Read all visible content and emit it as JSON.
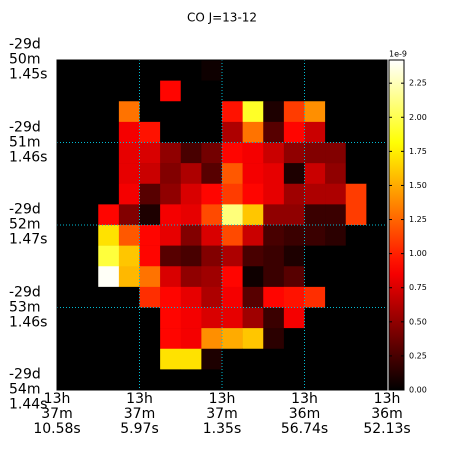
{
  "chart_data": {
    "type": "heatmap",
    "title": "CO J=13-12",
    "cmap": "hot",
    "grid": true,
    "grid_color": "#00bcd4",
    "xlim": [
      0,
      16
    ],
    "ylim": [
      16,
      0
    ],
    "xticks": [
      {
        "value": 0,
        "label": "13h\n37m\n10.58s"
      },
      {
        "value": 4,
        "label": "13h\n37m\n5.97s"
      },
      {
        "value": 8,
        "label": "13h\n37m\n1.35s"
      },
      {
        "value": 12,
        "label": "13h\n36m\n56.74s"
      },
      {
        "value": 16,
        "label": "13h\n36m\n52.13s"
      }
    ],
    "yticks": [
      {
        "value": 0,
        "label": "-29d\n50m\n1.45s"
      },
      {
        "value": 4,
        "label": "-29d\n51m\n1.46s"
      },
      {
        "value": 8,
        "label": "-29d\n52m\n1.47s"
      },
      {
        "value": 12,
        "label": "-29d\n53m\n1.46s"
      },
      {
        "value": 16,
        "label": "-29d\n54m\n1.44s"
      }
    ],
    "colorbar": {
      "lim": [
        0,
        2.42
      ],
      "offset_label": "1e-9",
      "ticks": [
        {
          "value": 0,
          "label": "0.00"
        },
        {
          "value": 0.25,
          "label": "0.25"
        },
        {
          "value": 0.5,
          "label": "0.50"
        },
        {
          "value": 0.75,
          "label": "0.75"
        },
        {
          "value": 1,
          "label": "1.00"
        },
        {
          "value": 1.25,
          "label": "1.25"
        },
        {
          "value": 1.5,
          "label": "1.50"
        },
        {
          "value": 1.75,
          "label": "1.75"
        },
        {
          "value": 2,
          "label": "2.00"
        },
        {
          "value": 2.25,
          "label": "2.25"
        }
      ]
    },
    "values": [
      [
        0,
        0,
        0,
        0,
        0,
        0,
        0,
        0.05,
        0,
        0,
        0,
        0,
        0,
        0,
        0,
        0
      ],
      [
        0,
        0,
        0,
        0,
        0,
        0.9,
        0,
        0,
        0,
        0,
        0,
        0,
        0,
        0,
        0,
        0
      ],
      [
        0,
        0,
        0,
        1.3,
        0,
        0,
        0,
        0,
        0.95,
        1.9,
        0.1,
        1.1,
        1.4,
        0,
        0,
        0
      ],
      [
        0,
        0,
        0,
        0.85,
        0.95,
        0,
        0,
        0,
        0.6,
        1.3,
        0.3,
        0.9,
        0.7,
        0,
        0,
        0
      ],
      [
        0,
        0,
        0,
        0.8,
        0.75,
        0.5,
        0.25,
        0.4,
        0.9,
        0.85,
        0.7,
        0.5,
        0.45,
        0.45,
        0,
        0
      ],
      [
        0,
        0,
        0,
        0.8,
        0.7,
        0.45,
        0.6,
        0.3,
        1.2,
        0.85,
        0.8,
        0.1,
        0.7,
        0.5,
        0,
        0
      ],
      [
        0,
        0,
        0,
        0.85,
        0.3,
        0.5,
        0.75,
        0.9,
        1.1,
        0.9,
        0.8,
        0.55,
        0.6,
        0.6,
        1.1,
        0
      ],
      [
        0,
        0,
        0.9,
        0.45,
        0.1,
        0.85,
        0.8,
        1.15,
        2.1,
        1.6,
        0.5,
        0.5,
        0.2,
        0.2,
        1.1,
        0
      ],
      [
        0,
        0,
        1.7,
        1.2,
        0.9,
        0.8,
        0.45,
        0.75,
        1.15,
        0.7,
        0.25,
        0.2,
        0.2,
        0.15,
        0,
        0
      ],
      [
        0,
        0,
        1.95,
        1.6,
        0.9,
        0.3,
        0.25,
        0.45,
        0.6,
        0.25,
        0.2,
        0.1,
        0,
        0,
        0,
        0
      ],
      [
        0,
        0,
        2.4,
        1.55,
        1.3,
        0.75,
        0.5,
        0.55,
        0.9,
        0.05,
        0.2,
        0.3,
        0,
        0,
        0,
        0
      ],
      [
        0,
        0,
        0,
        0,
        1.05,
        0.9,
        0.8,
        0.6,
        0.85,
        0.3,
        0.9,
        0.95,
        1.05,
        0,
        0,
        0
      ],
      [
        0,
        0,
        0,
        0,
        0,
        0.9,
        0.85,
        0.75,
        0.8,
        0.55,
        0.2,
        0.85,
        0,
        0,
        0,
        0
      ],
      [
        0,
        0,
        0,
        0,
        0,
        0.9,
        0.85,
        1.4,
        1.5,
        1.6,
        0.15,
        0,
        0,
        0,
        0,
        0
      ],
      [
        0,
        0,
        0,
        0,
        0,
        1.7,
        1.7,
        0.1,
        0,
        0,
        0,
        0,
        0,
        0,
        0,
        0
      ],
      [
        0,
        0,
        0,
        0,
        0,
        0,
        0,
        0,
        0,
        0,
        0,
        0,
        0,
        0,
        0,
        0
      ]
    ]
  }
}
